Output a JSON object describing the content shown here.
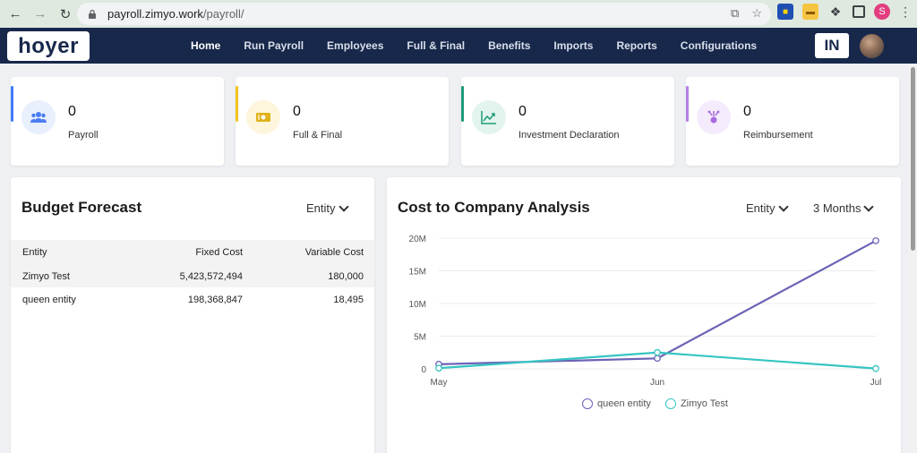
{
  "browser": {
    "url_host": "payroll.zimyo.work",
    "url_path": "/payroll/",
    "profile_initial": "S"
  },
  "header": {
    "logo": "hoyer",
    "nav": [
      "Home",
      "Run Payroll",
      "Employees",
      "Full & Final",
      "Benefits",
      "Imports",
      "Reports",
      "Configurations"
    ],
    "active_nav": "Home",
    "country_badge": "IN"
  },
  "stats": [
    {
      "value": "0",
      "label": "Payroll",
      "accent": "#3f7cf5",
      "icon": "users-icon",
      "icon_bg": "#e8effd",
      "icon_color": "#4a7df0"
    },
    {
      "value": "0",
      "label": "Full & Final",
      "accent": "#f3c21b",
      "icon": "cash-icon",
      "icon_bg": "#fdf6dc",
      "icon_color": "#e0b21a"
    },
    {
      "value": "0",
      "label": "Investment Declaration",
      "accent": "#1c9b78",
      "icon": "trend-up-icon",
      "icon_bg": "#e3f4ee",
      "icon_color": "#1c9b78"
    },
    {
      "value": "0",
      "label": "Reimbursement",
      "accent": "#b57ee8",
      "icon": "expense-icon",
      "icon_bg": "#f4ebfc",
      "icon_color": "#a66be2"
    }
  ],
  "budget": {
    "title": "Budget Forecast",
    "filter": "Entity",
    "columns": [
      "Entity",
      "Fixed Cost",
      "Variable Cost"
    ],
    "rows": [
      [
        "Zimyo Test",
        "5,423,572,494",
        "180,000"
      ],
      [
        "queen entity",
        "198,368,847",
        "18,495"
      ]
    ]
  },
  "ctc": {
    "title": "Cost to Company Analysis",
    "filter_entity": "Entity",
    "filter_period": "3 Months"
  },
  "chart_data": {
    "type": "line",
    "x": [
      "May",
      "Jun",
      "Jul"
    ],
    "ylim": [
      0,
      20000000
    ],
    "y_ticks": [
      0,
      5000000,
      10000000,
      15000000,
      20000000
    ],
    "y_tick_labels": [
      "0",
      "5M",
      "10M",
      "15M",
      "20M"
    ],
    "grid": true,
    "legend": "bottom",
    "series": [
      {
        "name": "queen entity",
        "color": "#6a63b6",
        "values": [
          700000,
          1600000,
          19600000
        ]
      },
      {
        "name": "Zimyo Test",
        "color": "#36c5c2",
        "values": [
          100000,
          2500000,
          50000
        ]
      }
    ]
  }
}
